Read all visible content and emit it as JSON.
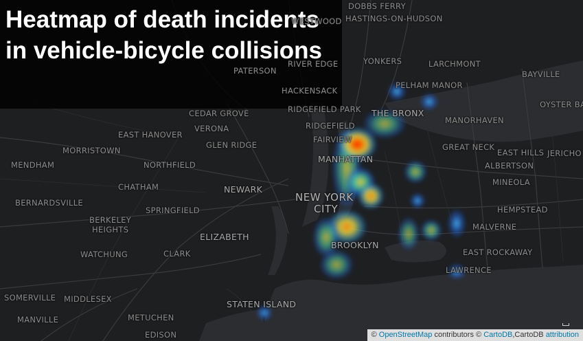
{
  "title": "Heatmap of death incidents in vehicle-bicycle collisions",
  "labels": {
    "dobbs_ferry": "DOBBS FERRY",
    "hastings": "HASTINGS-ON-HUDSON",
    "westwood": "WESTWOOD",
    "river_edge": "RIVER EDGE",
    "paterson": "PATERSON",
    "hackensack": "HACKENSACK",
    "yonkers": "YONKERS",
    "larchmont": "LARCHMONT",
    "pelham_manor": "PELHAM MANOR",
    "bayville": "BAYVILLE",
    "oyster_bay": "OYSTER BA",
    "ridgefield_park": "RIDGEFIELD PARK",
    "the_bronx": "THE BRONX",
    "cedar_grove": "CEDAR GROVE",
    "verona": "VERONA",
    "ridgefield": "RIDGEFIELD",
    "manorhaven": "MANORHAVEN",
    "east_hanover": "EAST HANOVER",
    "fairview": "FAIRVIEW",
    "glen_ridge": "GLEN RIDGE",
    "great_neck": "GREAT NECK",
    "east_hills": "EAST HILLS",
    "jericho": "JERICHO",
    "morristown": "MORRISTOWN",
    "manhattan": "MANHATTAN",
    "mendham": "MENDHAM",
    "northfield": "NORTHFIELD",
    "albertson": "ALBERTSON",
    "mineola": "MINEOLA",
    "chatham": "CHATHAM",
    "newark": "NEWARK",
    "new_york_1": "NEW YORK",
    "new_york_2": "CITY",
    "bernardsville": "BERNARDSVILLE",
    "springfield": "SPRINGFIELD",
    "hempstead": "HEMPSTEAD",
    "berkeley_1": "BERKELEY",
    "berkeley_2": "HEIGHTS",
    "malverne": "MALVERNE",
    "elizabeth": "ELIZABETH",
    "brooklyn": "BROOKLYN",
    "watchung": "WATCHUNG",
    "clark": "CLARK",
    "east_rockaway": "EAST ROCKAWAY",
    "lawrence": "LAWRENCE",
    "somerville": "SOMERVILLE",
    "middlesex": "MIDDLESEX",
    "staten_island": "STATEN ISLAND",
    "manville": "MANVILLE",
    "metuchen": "METUCHEN",
    "edison": "EDISON"
  },
  "attribution": {
    "symbol": "©",
    "osm_link": "OpenStreetMap",
    "contributors": " contributors ©",
    "cartodb_link": "CartoDB",
    "cartodb_text": ",CartoDB",
    "attribution_link": "attribution"
  },
  "colors": {
    "background": "#1e1f21",
    "water": "#2c2d30",
    "heat_low": "#1f5fd6",
    "heat_mid": "#46d0a8",
    "heat_high": "#e8d83a",
    "heat_peak": "#ff1e00"
  },
  "heat_points": [
    {
      "name": "manhattan-upper",
      "intensity": 1.0
    },
    {
      "name": "bronx",
      "intensity": 0.5
    },
    {
      "name": "midtown",
      "intensity": 0.7
    },
    {
      "name": "queens-west",
      "intensity": 0.75
    },
    {
      "name": "brooklyn-north",
      "intensity": 0.8
    },
    {
      "name": "brooklyn-south",
      "intensity": 0.45
    },
    {
      "name": "pelham",
      "intensity": 0.35
    },
    {
      "name": "queens-east",
      "intensity": 0.45
    },
    {
      "name": "jamaica",
      "intensity": 0.5
    },
    {
      "name": "rockaway",
      "intensity": 0.3
    },
    {
      "name": "staten-island",
      "intensity": 0.3
    }
  ]
}
